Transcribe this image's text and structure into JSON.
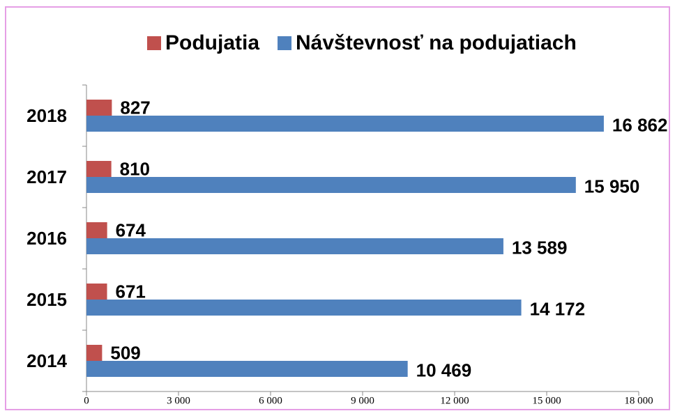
{
  "chart_data": {
    "type": "hbar",
    "categories": [
      "2014",
      "2015",
      "2016",
      "2017",
      "2018"
    ],
    "series": [
      {
        "name": "Podujatia",
        "color": "#c0504d",
        "values": [
          509,
          671,
          674,
          810,
          827
        ]
      },
      {
        "name": "Návštevnosť na podujatiach",
        "color": "#4f81bd",
        "values": [
          10469,
          14172,
          13589,
          15950,
          16862
        ],
        "value_labels": [
          "10 469",
          "14 172",
          "13 589",
          "15 950",
          "16 862"
        ]
      }
    ],
    "xlim": [
      0,
      18000
    ],
    "xticks": [
      0,
      {
        "value": 3000,
        "label": "3 000"
      },
      {
        "value": 6000,
        "label": "6 000"
      },
      {
        "value": 9000,
        "label": "9 000"
      },
      {
        "value": 12000,
        "label": "12 000"
      },
      {
        "value": 15000,
        "label": "15 000"
      },
      {
        "value": 18000,
        "label": "18 000"
      }
    ],
    "legend": "top"
  }
}
